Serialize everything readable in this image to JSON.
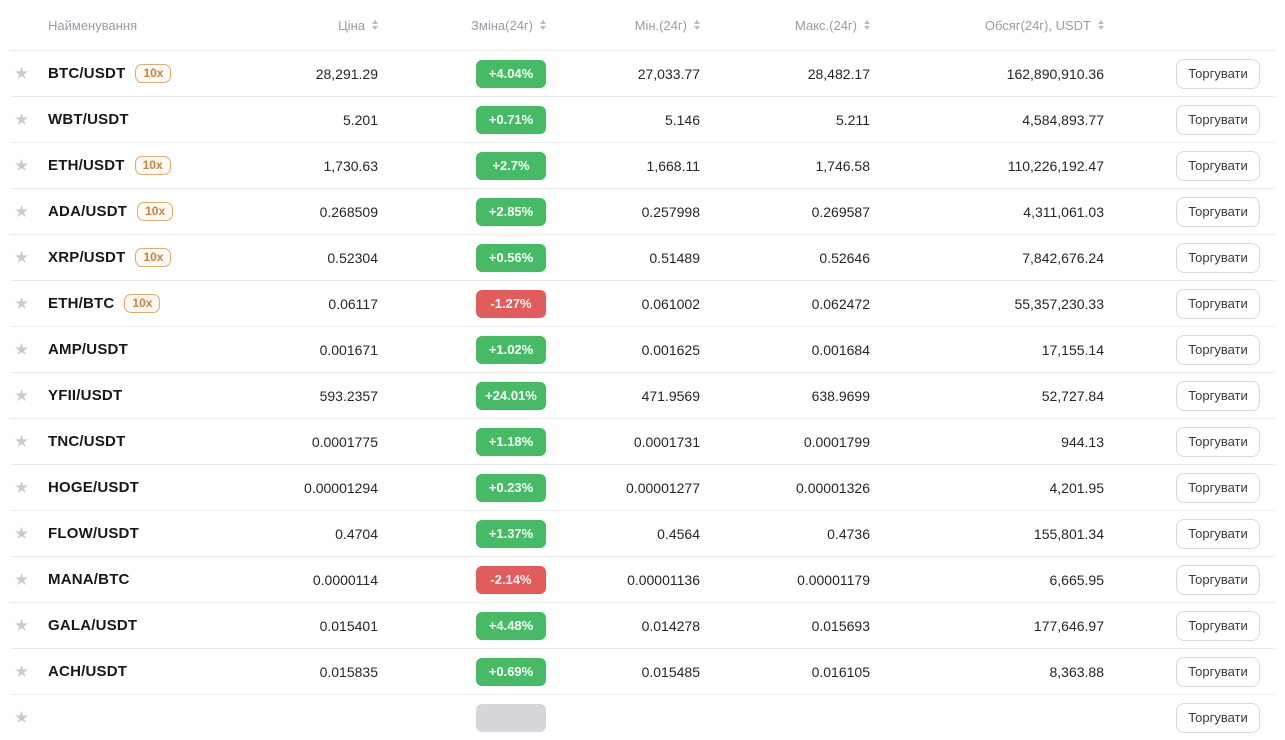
{
  "table": {
    "columns": [
      {
        "label": "Найменування",
        "sortable": false,
        "align": "left"
      },
      {
        "label": "Ціна",
        "sortable": true,
        "align": "right"
      },
      {
        "label": "Зміна(24г)",
        "sortable": true,
        "align": "right"
      },
      {
        "label": "Мін.(24г)",
        "sortable": true,
        "align": "right"
      },
      {
        "label": "Макс.(24г)",
        "sortable": true,
        "align": "right"
      },
      {
        "label": "Обсяг(24г), USDT",
        "sortable": true,
        "align": "right"
      }
    ],
    "trade_button_label": "Торгувати",
    "favorite_icon": "star-icon",
    "rows": [
      {
        "pair": "BTC/USDT",
        "leverage": "10x",
        "price": "28,291.29",
        "change": "+4.04%",
        "direction": "up",
        "min": "27,033.77",
        "max": "28,482.17",
        "volume": "162,890,910.36"
      },
      {
        "pair": "WBT/USDT",
        "leverage": null,
        "price": "5.201",
        "change": "+0.71%",
        "direction": "up",
        "min": "5.146",
        "max": "5.211",
        "volume": "4,584,893.77"
      },
      {
        "pair": "ETH/USDT",
        "leverage": "10x",
        "price": "1,730.63",
        "change": "+2.7%",
        "direction": "up",
        "min": "1,668.11",
        "max": "1,746.58",
        "volume": "110,226,192.47"
      },
      {
        "pair": "ADA/USDT",
        "leverage": "10x",
        "price": "0.268509",
        "change": "+2.85%",
        "direction": "up",
        "min": "0.257998",
        "max": "0.269587",
        "volume": "4,311,061.03"
      },
      {
        "pair": "XRP/USDT",
        "leverage": "10x",
        "price": "0.52304",
        "change": "+0.56%",
        "direction": "up",
        "min": "0.51489",
        "max": "0.52646",
        "volume": "7,842,676.24"
      },
      {
        "pair": "ETH/BTC",
        "leverage": "10x",
        "price": "0.06117",
        "change": "-1.27%",
        "direction": "down",
        "min": "0.061002",
        "max": "0.062472",
        "volume": "55,357,230.33"
      },
      {
        "pair": "AMP/USDT",
        "leverage": null,
        "price": "0.001671",
        "change": "+1.02%",
        "direction": "up",
        "min": "0.001625",
        "max": "0.001684",
        "volume": "17,155.14"
      },
      {
        "pair": "YFII/USDT",
        "leverage": null,
        "price": "593.2357",
        "change": "+24.01%",
        "direction": "up",
        "min": "471.9569",
        "max": "638.9699",
        "volume": "52,727.84"
      },
      {
        "pair": "TNC/USDT",
        "leverage": null,
        "price": "0.0001775",
        "change": "+1.18%",
        "direction": "up",
        "min": "0.0001731",
        "max": "0.0001799",
        "volume": "944.13"
      },
      {
        "pair": "HOGE/USDT",
        "leverage": null,
        "price": "0.00001294",
        "change": "+0.23%",
        "direction": "up",
        "min": "0.00001277",
        "max": "0.00001326",
        "volume": "4,201.95"
      },
      {
        "pair": "FLOW/USDT",
        "leverage": null,
        "price": "0.4704",
        "change": "+1.37%",
        "direction": "up",
        "min": "0.4564",
        "max": "0.4736",
        "volume": "155,801.34"
      },
      {
        "pair": "MANA/BTC",
        "leverage": null,
        "price": "0.0000114",
        "change": "-2.14%",
        "direction": "down",
        "min": "0.00001136",
        "max": "0.00001179",
        "volume": "6,665.95"
      },
      {
        "pair": "GALA/USDT",
        "leverage": null,
        "price": "0.015401",
        "change": "+4.48%",
        "direction": "up",
        "min": "0.014278",
        "max": "0.015693",
        "volume": "177,646.97"
      },
      {
        "pair": "ACH/USDT",
        "leverage": null,
        "price": "0.015835",
        "change": "+0.69%",
        "direction": "up",
        "min": "0.015485",
        "max": "0.016105",
        "volume": "8,363.88"
      },
      {
        "pair": "",
        "leverage": null,
        "price": "",
        "change": "",
        "direction": "neutral",
        "min": "",
        "max": "",
        "volume": "",
        "partial": true
      }
    ]
  },
  "colors": {
    "positive": "#46ba64",
    "negative": "#e25c5c",
    "neutral_badge": "#d4d6da",
    "leverage_border": "#e0aa73",
    "leverage_text": "#c9833f",
    "header_text": "#979ca6",
    "divider": "#e8eaee"
  }
}
